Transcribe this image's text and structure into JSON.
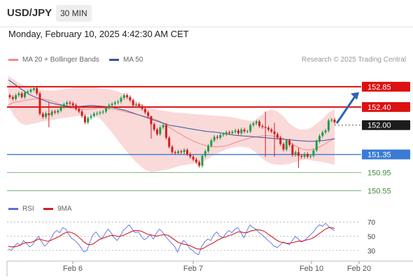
{
  "header": {
    "symbol": "USD/JPY",
    "timeframe": "30 MIN",
    "datetime": "Monday, February 10, 2025 4:42:30 AM CET"
  },
  "legend": {
    "ma20": "MA 20 + Bollinger Bands",
    "ma50": "MA 50",
    "credit": "Research © 2025 Trading Central"
  },
  "rsi_legend": {
    "rsi": "RSI",
    "ma9": "9MA"
  },
  "colors": {
    "resistance": "#dd1111",
    "support": "#3a7bd5",
    "support_weak": "#5aa05a",
    "ma20": "#f08a8a",
    "ma50": "#34579a",
    "band": "#f9d2d2",
    "bull": "#1f9d4c",
    "bear": "#d11f1f",
    "arrow": "#2d63b8",
    "rsi": "#5a6fe0",
    "rsi_ma": "#d11f1f"
  },
  "chart_data": [
    {
      "type": "candlestick",
      "title": "USD/JPY",
      "timeframe": "30 MIN",
      "x_labels": [
        "Feb 6",
        "Feb 7",
        "Feb 10",
        "Feb 20"
      ],
      "ylim": [
        150.4,
        153.25
      ],
      "current_price": 152.0,
      "levels": [
        {
          "value": 152.85,
          "label": "152.85",
          "kind": "resistance",
          "style": "strong"
        },
        {
          "value": 152.4,
          "label": "152.40",
          "kind": "resistance",
          "style": "strong"
        },
        {
          "value": 152.0,
          "label": "152.00",
          "kind": "pivot",
          "style": "dotted"
        },
        {
          "value": 151.35,
          "label": "151.35",
          "kind": "support",
          "style": "strong"
        },
        {
          "value": 150.95,
          "label": "150.95",
          "kind": "support",
          "style": "weak"
        },
        {
          "value": 150.55,
          "label": "150.55",
          "kind": "support",
          "style": "weak"
        }
      ],
      "close": [
        152.62,
        152.58,
        152.66,
        152.7,
        152.62,
        152.72,
        152.74,
        152.78,
        152.82,
        152.7,
        152.25,
        152.18,
        152.26,
        152.22,
        152.3,
        152.28,
        152.32,
        152.4,
        152.46,
        152.5,
        152.48,
        152.44,
        152.36,
        152.3,
        152.2,
        152.06,
        152.16,
        152.2,
        152.25,
        152.26,
        152.28,
        152.3,
        152.38,
        152.44,
        152.47,
        152.5,
        152.52,
        152.6,
        152.66,
        152.62,
        152.55,
        152.44,
        152.46,
        152.42,
        152.36,
        152.28,
        152.2,
        152.02,
        151.9,
        151.8,
        151.95,
        152.0,
        151.72,
        151.52,
        151.4,
        151.38,
        151.42,
        151.4,
        151.45,
        151.36,
        151.3,
        151.24,
        151.18,
        151.1,
        151.32,
        151.42,
        151.54,
        151.66,
        151.74,
        151.72,
        151.78,
        151.8,
        151.84,
        151.82,
        151.85,
        151.88,
        151.82,
        151.9,
        151.86,
        151.86,
        152.0,
        152.04,
        152.08,
        151.98,
        151.96,
        151.94,
        151.9,
        151.86,
        151.8,
        151.72,
        151.58,
        151.46,
        151.66,
        151.56,
        151.34,
        151.4,
        151.32,
        151.3,
        151.36,
        151.3,
        151.32,
        151.44,
        151.64,
        151.76,
        151.84,
        151.88,
        152.1,
        152.12,
        152.06
      ],
      "wicks": [
        {
          "index": 13,
          "high": 152.5,
          "low": 151.95
        },
        {
          "index": 47,
          "high": 152.2,
          "low": 151.7
        },
        {
          "index": 85,
          "high": 152.3,
          "low": 151.3
        },
        {
          "index": 88,
          "high": 152.05,
          "low": 151.3
        },
        {
          "index": 96,
          "high": 151.5,
          "low": 151.05
        }
      ],
      "ma20": [
        152.45,
        152.5,
        152.52,
        152.55,
        152.57,
        152.58,
        152.58,
        152.56,
        152.52,
        152.47,
        152.42,
        152.38,
        152.36,
        152.35,
        152.35,
        152.36,
        152.38,
        152.38,
        152.37,
        152.35,
        152.32,
        152.29,
        152.26,
        152.23,
        152.2,
        152.17,
        152.13,
        152.08,
        152.0,
        151.92,
        151.84,
        151.77,
        151.7,
        151.64,
        151.59,
        151.55,
        151.53,
        151.52,
        151.53,
        151.55,
        151.6,
        151.64,
        151.68,
        151.72,
        151.74,
        151.76,
        151.77,
        151.76,
        151.74,
        151.7,
        151.62,
        151.54,
        151.48,
        151.45,
        151.46,
        151.5,
        151.56,
        151.64,
        151.7
      ],
      "ma50": [
        153.0,
        152.92,
        152.83,
        152.75,
        152.67,
        152.62,
        152.58,
        152.53,
        152.49,
        152.46,
        152.44,
        152.42,
        152.41,
        152.41,
        152.42,
        152.43,
        152.43,
        152.42,
        152.41,
        152.4,
        152.38,
        152.35,
        152.32,
        152.28,
        152.24,
        152.2,
        152.16,
        152.12,
        152.08,
        152.04,
        152.0,
        151.98,
        151.96,
        151.94,
        151.92,
        151.9,
        151.88,
        151.86,
        151.85,
        151.84,
        151.82,
        151.8,
        151.78,
        151.77,
        151.76,
        151.75,
        151.74,
        151.73,
        151.72,
        151.71,
        151.7,
        151.69,
        151.68,
        151.67,
        151.66,
        151.65,
        151.64,
        151.64,
        151.65,
        151.66,
        151.68,
        151.7
      ],
      "bollinger_upper": [
        153.1,
        153.0,
        152.92,
        152.86,
        152.82,
        152.8,
        152.78,
        152.77,
        152.77,
        152.78,
        152.8,
        152.82,
        152.84,
        152.85,
        152.85,
        152.84,
        152.82,
        152.8,
        152.78,
        152.75,
        152.7,
        152.62,
        152.55,
        152.48,
        152.42,
        152.38,
        152.34,
        152.32,
        152.3,
        152.28,
        152.27,
        152.26,
        152.25,
        152.24,
        152.23,
        152.22,
        152.21,
        152.2,
        152.19,
        152.18,
        152.15,
        152.12,
        152.1,
        152.1,
        152.2,
        152.3,
        152.35,
        152.3,
        152.2,
        152.05,
        151.95,
        151.9,
        151.9,
        151.95,
        152.05,
        152.15,
        152.28,
        152.35
      ],
      "bollinger_lower": [
        152.4,
        152.2,
        152.05,
        152.0,
        152.02,
        152.05,
        152.08,
        152.1,
        152.12,
        152.15,
        152.16,
        152.18,
        152.2,
        152.22,
        152.22,
        152.2,
        152.15,
        152.0,
        151.85,
        151.68,
        151.52,
        151.36,
        151.22,
        151.1,
        151.0,
        150.96,
        150.98,
        151.0,
        151.02,
        151.06,
        151.1,
        151.12,
        151.14,
        151.16,
        151.2,
        151.26,
        151.34,
        151.4,
        151.46,
        151.5,
        151.52,
        151.52,
        151.5,
        151.42,
        151.3,
        151.2,
        151.14,
        151.12,
        151.12,
        151.14,
        151.18,
        151.22,
        151.24,
        151.22,
        151.2,
        151.18,
        151.15,
        151.12
      ]
    },
    {
      "type": "line",
      "title": "RSI",
      "ylim": [
        20,
        75
      ],
      "yticks": [
        70,
        50,
        30
      ],
      "series": [
        {
          "name": "RSI",
          "values": [
            32,
            30,
            36,
            40,
            37,
            44,
            40,
            35,
            38,
            45,
            50,
            42,
            36,
            40,
            46,
            54,
            58,
            55,
            62,
            60,
            52,
            47,
            44,
            40,
            34,
            28,
            30,
            42,
            52,
            56,
            50,
            46,
            54,
            60,
            55,
            48,
            44,
            50,
            58,
            62,
            66,
            60,
            55,
            56,
            50,
            45,
            48,
            52,
            46,
            54,
            60,
            56,
            50,
            45,
            40,
            36,
            28,
            38,
            44,
            40,
            33,
            30,
            26,
            24,
            36,
            42,
            46,
            44,
            52,
            56,
            50,
            48,
            54,
            58,
            55,
            60,
            62,
            55,
            48,
            58,
            66,
            62,
            60,
            55,
            52,
            48,
            44,
            40,
            36,
            34,
            38,
            42,
            40,
            38,
            44,
            50,
            46,
            42,
            44,
            48,
            52,
            56,
            62,
            66,
            64,
            68,
            64,
            60,
            58
          ]
        },
        {
          "name": "9MA",
          "values": [
            36,
            35,
            35,
            36,
            38,
            40,
            41,
            41,
            42,
            44,
            46,
            45,
            44,
            43,
            44,
            46,
            48,
            50,
            53,
            55,
            56,
            55,
            53,
            50,
            46,
            42,
            39,
            38,
            39,
            42,
            45,
            47,
            48,
            50,
            51,
            51,
            50,
            50,
            51,
            53,
            55,
            57,
            58,
            58,
            57,
            55,
            53,
            52,
            51,
            50,
            51,
            52,
            52,
            51,
            48,
            45,
            42,
            40,
            39,
            38,
            37,
            35,
            33,
            32,
            32,
            34,
            37,
            39,
            41,
            44,
            46,
            48,
            49,
            51,
            52,
            54,
            56,
            56,
            55,
            55,
            57,
            58,
            59,
            59,
            58,
            56,
            53,
            50,
            47,
            44,
            42,
            41,
            40,
            40,
            41,
            42,
            43,
            43,
            44,
            45,
            46,
            48,
            51,
            54,
            57,
            60,
            62,
            62,
            61
          ]
        }
      ]
    }
  ]
}
